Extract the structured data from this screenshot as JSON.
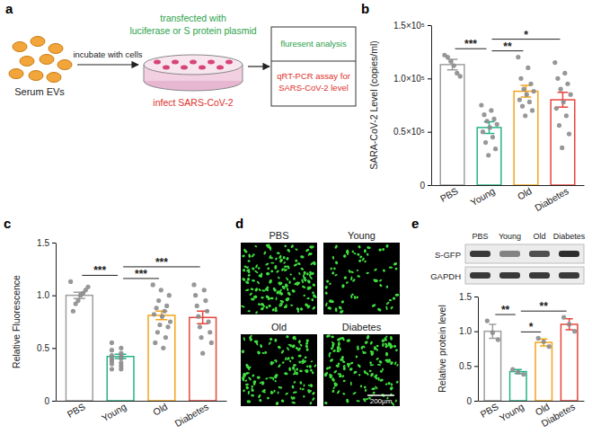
{
  "figure": {
    "panel_labels": [
      "a",
      "b",
      "c",
      "d",
      "e"
    ]
  },
  "diagram": {
    "input": "Serum EVs",
    "step": "incubate with cells",
    "transfection": [
      "transfected with",
      "luciferase or S protein plasmid"
    ],
    "infection": "infect SARS-CoV-2",
    "readout_1": "fluresent analysis",
    "readout_2": [
      "qRT-PCR assay for",
      "SARS-CoV-2 level"
    ]
  },
  "images": {
    "labels": [
      "PBS",
      "Young",
      "Old",
      "Diabetes"
    ],
    "scale_bar": "200μm"
  },
  "blot": {
    "lanes": [
      "PBS",
      "Young",
      "Old",
      "Diabetes"
    ],
    "rows": [
      "S-GFP",
      "GAPDH"
    ]
  },
  "chart_data": [
    {
      "type": "bar",
      "y_label": "SARA-CoV-2 Level (copies/ml)",
      "categories": [
        "PBS",
        "Young",
        "Old",
        "Diabetes"
      ],
      "values": [
        113000,
        54000,
        88000,
        80000
      ],
      "errors": [
        5000,
        5500,
        5500,
        7000
      ],
      "points": [
        [
          122000,
          120000,
          116000,
          112000,
          105000,
          102000
        ],
        [
          75000,
          70000,
          66000,
          62000,
          60000,
          57000,
          54000,
          50000,
          45000,
          40000,
          34000,
          28000
        ],
        [
          120000,
          110000,
          100000,
          95000,
          90000,
          88000,
          85000,
          80000,
          78000,
          74000,
          70000,
          65000
        ],
        [
          115000,
          105000,
          100000,
          95000,
          90000,
          85000,
          78000,
          72000,
          65000,
          56000,
          48000,
          35000
        ]
      ],
      "colors": [
        "#9e9e9e",
        "#25b38a",
        "#f5a31a",
        "#e8443a"
      ],
      "ylim": [
        0,
        150000
      ],
      "yticks": [
        0,
        {
          "value": 50000,
          "label": "0.5×10⁵"
        },
        {
          "value": 100000,
          "label": "1.0×10⁵"
        },
        {
          "value": 150000,
          "label": "1.5×10⁵"
        }
      ],
      "significance": [
        {
          "from": "PBS",
          "to": "Young",
          "label": "***"
        },
        {
          "from": "Young",
          "to": "Old",
          "label": "**"
        },
        {
          "from": "Young",
          "to": "Diabetes",
          "label": "*"
        }
      ]
    },
    {
      "type": "bar",
      "y_label": "Relative Fluorescence",
      "categories": [
        "PBS",
        "Young",
        "Old",
        "Diabetes"
      ],
      "values": [
        1.0,
        0.42,
        0.81,
        0.79
      ],
      "errors": [
        0.03,
        0.02,
        0.04,
        0.06
      ],
      "points": [
        [
          1.13,
          1.08,
          1.05,
          1.02,
          1.0,
          0.95,
          0.92,
          0.85
        ],
        [
          0.55,
          0.5,
          0.48,
          0.45,
          0.43,
          0.42,
          0.4,
          0.4,
          0.38,
          0.36,
          0.35,
          0.33,
          0.3,
          0.3
        ],
        [
          1.1,
          1.05,
          1.0,
          0.95,
          0.9,
          0.88,
          0.85,
          0.82,
          0.8,
          0.75,
          0.72,
          0.7,
          0.65,
          0.6,
          0.55,
          0.5
        ],
        [
          1.1,
          1.05,
          1.0,
          0.95,
          0.9,
          0.85,
          0.8,
          0.75,
          0.7,
          0.65,
          0.6,
          0.55,
          0.45
        ]
      ],
      "colors": [
        "#9e9e9e",
        "#25b38a",
        "#f5a31a",
        "#e8443a"
      ],
      "ylim": [
        0,
        1.5
      ],
      "yticks": [
        0,
        0.5,
        {
          "value": 1,
          "label": "1.0"
        },
        1.5
      ],
      "significance": [
        {
          "from": "PBS",
          "to": "Young",
          "label": "***"
        },
        {
          "from": "Young",
          "to": "Old",
          "label": "***"
        },
        {
          "from": "Young",
          "to": "Diabetes",
          "label": "***"
        }
      ]
    },
    {
      "type": "bar",
      "y_label": "Relative protein level",
      "categories": [
        "PBS",
        "Young",
        "Old",
        "Diabetes"
      ],
      "values": [
        1.0,
        0.42,
        0.84,
        1.1
      ],
      "errors": [
        0.1,
        0.03,
        0.05,
        0.08
      ],
      "points": [
        [
          1.15,
          0.98,
          0.88
        ],
        [
          0.45,
          0.41,
          0.38
        ],
        [
          0.9,
          0.85,
          0.78
        ],
        [
          1.2,
          1.1,
          1.0
        ]
      ],
      "colors": [
        "#9e9e9e",
        "#25b38a",
        "#f5a31a",
        "#e8443a"
      ],
      "ylim": [
        0,
        1.5
      ],
      "yticks": [
        0,
        0.5,
        {
          "value": 1,
          "label": "1.0"
        },
        1.5
      ],
      "significance": [
        {
          "from": "PBS",
          "to": "Young",
          "label": "**"
        },
        {
          "from": "Young",
          "to": "Old",
          "label": "*"
        },
        {
          "from": "Young",
          "to": "Diabetes",
          "label": "**"
        }
      ]
    }
  ]
}
